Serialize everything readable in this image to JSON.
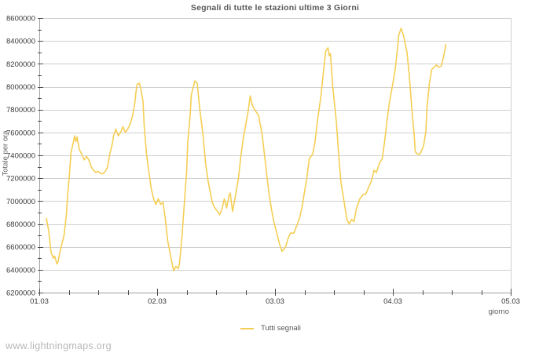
{
  "title": "Segnali di tutte le stazioni ultime 3 Giorni",
  "watermark": "www.lightningmaps.org",
  "colors": {
    "line": "#f5ce55",
    "grid": "#cfcfcf",
    "border_light": "#cfcfcf",
    "axis": "#a0a0a0",
    "tick": "#4a4a4a",
    "tick_text": "#383838"
  },
  "chart_data": {
    "type": "line",
    "title": "Segnali di tutte le stazioni ultime 3 Giorni",
    "xlabel": "giorno",
    "ylabel": "Totale per ora",
    "xlim": [
      1,
      5
    ],
    "ylim": [
      6200000,
      8600000
    ],
    "x_ticks": [
      {
        "value": 1,
        "label": "01.03"
      },
      {
        "value": 2,
        "label": "02.03"
      },
      {
        "value": 3,
        "label": "03.03"
      },
      {
        "value": 4,
        "label": "04.03"
      },
      {
        "value": 5,
        "label": "05.03"
      }
    ],
    "x_minor_step": 0.25,
    "y_tick_step": 200000,
    "y_minor_step": 100000,
    "y_tick_labels": [
      "6200000",
      "6400000",
      "6600000",
      "6800000",
      "7000000",
      "7200000",
      "7400000",
      "7600000",
      "7800000",
      "8000000",
      "8200000",
      "8400000",
      "8600000"
    ],
    "grid": "horizontal",
    "legend_position": "bottom-center",
    "series": [
      {
        "name": "Tutti segnali",
        "color": "#f5ce55",
        "points": [
          [
            1.06,
            6850000
          ],
          [
            1.08,
            6740000
          ],
          [
            1.1,
            6550000
          ],
          [
            1.12,
            6500000
          ],
          [
            1.13,
            6520000
          ],
          [
            1.15,
            6450000
          ],
          [
            1.16,
            6470000
          ],
          [
            1.17,
            6530000
          ],
          [
            1.19,
            6620000
          ],
          [
            1.21,
            6700000
          ],
          [
            1.23,
            6880000
          ],
          [
            1.24,
            7040000
          ],
          [
            1.25,
            7160000
          ],
          [
            1.27,
            7430000
          ],
          [
            1.29,
            7520000
          ],
          [
            1.3,
            7570000
          ],
          [
            1.31,
            7520000
          ],
          [
            1.32,
            7560000
          ],
          [
            1.34,
            7450000
          ],
          [
            1.36,
            7410000
          ],
          [
            1.38,
            7360000
          ],
          [
            1.4,
            7390000
          ],
          [
            1.42,
            7360000
          ],
          [
            1.44,
            7300000
          ],
          [
            1.46,
            7270000
          ],
          [
            1.48,
            7250000
          ],
          [
            1.5,
            7260000
          ],
          [
            1.52,
            7240000
          ],
          [
            1.54,
            7240000
          ],
          [
            1.56,
            7260000
          ],
          [
            1.58,
            7300000
          ],
          [
            1.6,
            7420000
          ],
          [
            1.62,
            7500000
          ],
          [
            1.63,
            7570000
          ],
          [
            1.65,
            7630000
          ],
          [
            1.67,
            7570000
          ],
          [
            1.69,
            7600000
          ],
          [
            1.71,
            7650000
          ],
          [
            1.73,
            7600000
          ],
          [
            1.75,
            7630000
          ],
          [
            1.77,
            7670000
          ],
          [
            1.79,
            7740000
          ],
          [
            1.81,
            7850000
          ],
          [
            1.82,
            7950000
          ],
          [
            1.83,
            8020000
          ],
          [
            1.85,
            8030000
          ],
          [
            1.86,
            7990000
          ],
          [
            1.88,
            7870000
          ],
          [
            1.89,
            7660000
          ],
          [
            1.91,
            7410000
          ],
          [
            1.93,
            7250000
          ],
          [
            1.95,
            7110000
          ],
          [
            1.97,
            7020000
          ],
          [
            1.99,
            6970000
          ],
          [
            2.01,
            7020000
          ],
          [
            2.03,
            6970000
          ],
          [
            2.05,
            6990000
          ],
          [
            2.07,
            6840000
          ],
          [
            2.09,
            6650000
          ],
          [
            2.12,
            6490000
          ],
          [
            2.14,
            6390000
          ],
          [
            2.16,
            6430000
          ],
          [
            2.18,
            6410000
          ],
          [
            2.19,
            6460000
          ],
          [
            2.21,
            6680000
          ],
          [
            2.23,
            6970000
          ],
          [
            2.25,
            7250000
          ],
          [
            2.26,
            7520000
          ],
          [
            2.28,
            7750000
          ],
          [
            2.29,
            7930000
          ],
          [
            2.32,
            8050000
          ],
          [
            2.34,
            8030000
          ],
          [
            2.36,
            7820000
          ],
          [
            2.39,
            7570000
          ],
          [
            2.41,
            7340000
          ],
          [
            2.43,
            7190000
          ],
          [
            2.45,
            7080000
          ],
          [
            2.47,
            6980000
          ],
          [
            2.49,
            6940000
          ],
          [
            2.52,
            6900000
          ],
          [
            2.53,
            6880000
          ],
          [
            2.55,
            6930000
          ],
          [
            2.57,
            7020000
          ],
          [
            2.59,
            6940000
          ],
          [
            2.61,
            7050000
          ],
          [
            2.62,
            7070000
          ],
          [
            2.64,
            6910000
          ],
          [
            2.66,
            7020000
          ],
          [
            2.69,
            7200000
          ],
          [
            2.71,
            7390000
          ],
          [
            2.73,
            7540000
          ],
          [
            2.75,
            7660000
          ],
          [
            2.77,
            7770000
          ],
          [
            2.79,
            7920000
          ],
          [
            2.81,
            7830000
          ],
          [
            2.84,
            7780000
          ],
          [
            2.86,
            7750000
          ],
          [
            2.89,
            7590000
          ],
          [
            2.91,
            7410000
          ],
          [
            2.93,
            7230000
          ],
          [
            2.95,
            7060000
          ],
          [
            2.97,
            6930000
          ],
          [
            2.99,
            6820000
          ],
          [
            3.02,
            6700000
          ],
          [
            3.04,
            6620000
          ],
          [
            3.06,
            6560000
          ],
          [
            3.09,
            6600000
          ],
          [
            3.11,
            6670000
          ],
          [
            3.13,
            6720000
          ],
          [
            3.16,
            6720000
          ],
          [
            3.19,
            6800000
          ],
          [
            3.21,
            6860000
          ],
          [
            3.23,
            6950000
          ],
          [
            3.25,
            7080000
          ],
          [
            3.27,
            7200000
          ],
          [
            3.29,
            7370000
          ],
          [
            3.32,
            7410000
          ],
          [
            3.34,
            7520000
          ],
          [
            3.36,
            7700000
          ],
          [
            3.39,
            7920000
          ],
          [
            3.41,
            8120000
          ],
          [
            3.43,
            8310000
          ],
          [
            3.45,
            8340000
          ],
          [
            3.46,
            8270000
          ],
          [
            3.47,
            8290000
          ],
          [
            3.49,
            8000000
          ],
          [
            3.52,
            7700000
          ],
          [
            3.54,
            7410000
          ],
          [
            3.56,
            7160000
          ],
          [
            3.59,
            6970000
          ],
          [
            3.61,
            6840000
          ],
          [
            3.63,
            6800000
          ],
          [
            3.65,
            6840000
          ],
          [
            3.67,
            6820000
          ],
          [
            3.69,
            6930000
          ],
          [
            3.72,
            7020000
          ],
          [
            3.75,
            7060000
          ],
          [
            3.77,
            7060000
          ],
          [
            3.79,
            7110000
          ],
          [
            3.82,
            7180000
          ],
          [
            3.84,
            7270000
          ],
          [
            3.86,
            7250000
          ],
          [
            3.89,
            7340000
          ],
          [
            3.91,
            7370000
          ],
          [
            3.93,
            7520000
          ],
          [
            3.95,
            7700000
          ],
          [
            3.97,
            7860000
          ],
          [
            3.99,
            7970000
          ],
          [
            4.02,
            8150000
          ],
          [
            4.04,
            8340000
          ],
          [
            4.05,
            8450000
          ],
          [
            4.07,
            8510000
          ],
          [
            4.09,
            8450000
          ],
          [
            4.12,
            8300000
          ],
          [
            4.14,
            8090000
          ],
          [
            4.16,
            7820000
          ],
          [
            4.18,
            7590000
          ],
          [
            4.19,
            7430000
          ],
          [
            4.21,
            7410000
          ],
          [
            4.23,
            7410000
          ],
          [
            4.26,
            7480000
          ],
          [
            4.28,
            7610000
          ],
          [
            4.29,
            7820000
          ],
          [
            4.31,
            8030000
          ],
          [
            4.33,
            8150000
          ],
          [
            4.35,
            8170000
          ],
          [
            4.37,
            8190000
          ],
          [
            4.39,
            8170000
          ],
          [
            4.41,
            8180000
          ],
          [
            4.43,
            8260000
          ],
          [
            4.45,
            8370000
          ]
        ]
      }
    ]
  }
}
